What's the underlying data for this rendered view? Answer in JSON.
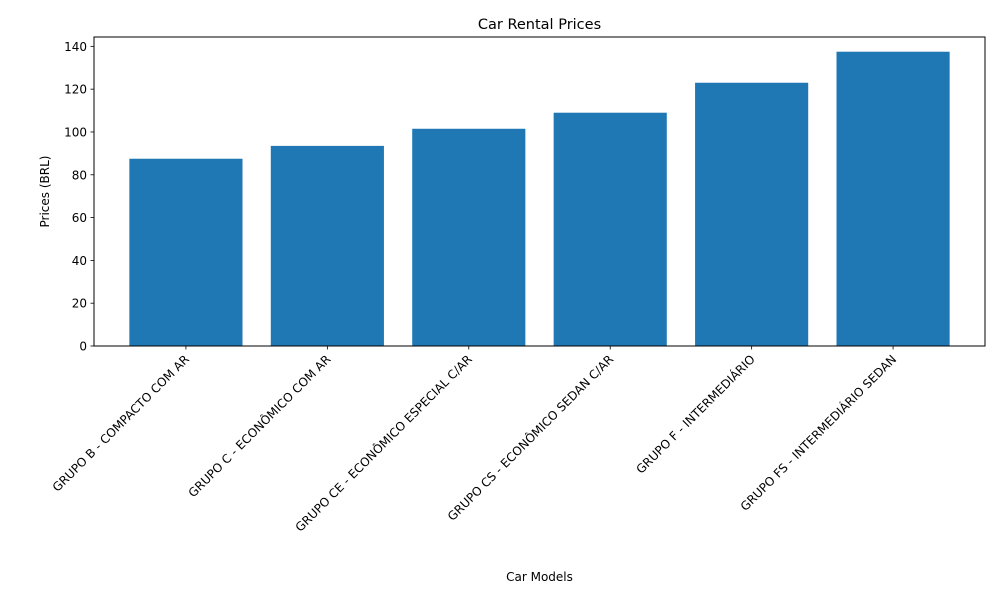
{
  "chart_data": {
    "type": "bar",
    "title": "Car Rental Prices",
    "xlabel": "Car Models",
    "ylabel": "Prices (BRL)",
    "categories": [
      "GRUPO B - COMPACTO COM AR",
      "GRUPO C - ECONÔMICO COM AR",
      "GRUPO CE - ECONÔMICO ESPECIAL C/AR",
      "GRUPO CS - ECONÔMICO SEDAN C/AR",
      "GRUPO F - INTERMEDIÁRIO",
      "GRUPO FS - INTERMEDIÁRIO SEDAN"
    ],
    "values": [
      87.5,
      93.5,
      101.5,
      109,
      123,
      137.5
    ],
    "ylim": [
      0,
      144.375
    ],
    "yticks": [
      0,
      20,
      40,
      60,
      80,
      100,
      120,
      140
    ],
    "grid": false,
    "legend": false,
    "bar_color": "#1f77b4"
  }
}
